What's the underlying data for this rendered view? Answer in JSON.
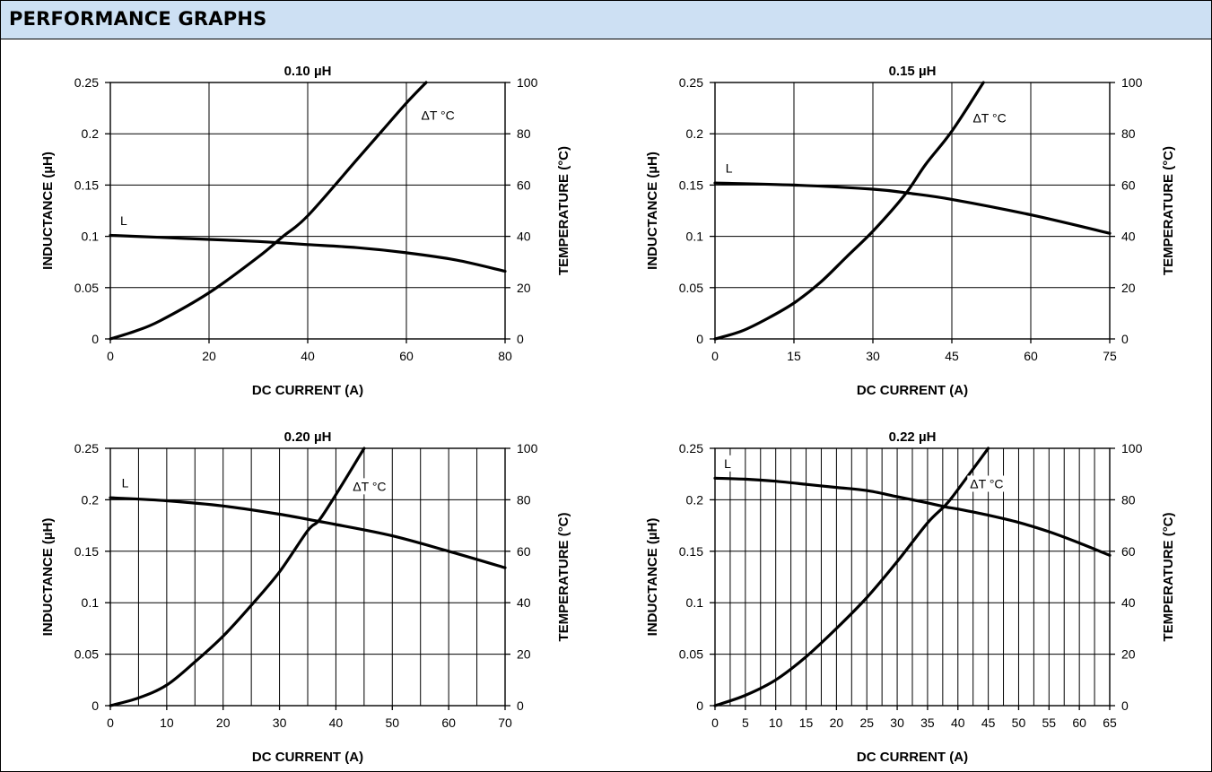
{
  "header": {
    "title": "PERFORMANCE GRAPHS"
  },
  "colors": {
    "header_bg": "#cde0f3",
    "line": "#000000",
    "grid": "#000000"
  },
  "chart_data": [
    {
      "type": "line",
      "title": "0.10 µH",
      "xlabel": "DC CURRENT (A)",
      "ylabel": "INDUCTANCE (µH)",
      "y2label": "TEMPERATURE (°C)",
      "xlim": [
        0,
        80
      ],
      "xticks": [
        0,
        20,
        40,
        60,
        80
      ],
      "xtick_labels": [
        "0",
        "20",
        "40",
        "60",
        "80"
      ],
      "xgrid": [
        0,
        20,
        40,
        60,
        80
      ],
      "ylim": [
        0,
        0.25
      ],
      "yticks": [
        0,
        0.05,
        0.1,
        0.15,
        0.2,
        0.25
      ],
      "ytick_labels": [
        "0",
        "0.05",
        "0.1",
        "0.15",
        "0.2",
        "0.25"
      ],
      "y2lim": [
        0,
        100
      ],
      "y2ticks": [
        0,
        20,
        40,
        60,
        80,
        100
      ],
      "y2tick_labels": [
        "0",
        "20",
        "40",
        "60",
        "80",
        "100"
      ],
      "grid": true,
      "series": [
        {
          "name": "L",
          "axis": "left",
          "x": [
            0,
            10,
            20,
            30,
            40,
            50,
            60,
            70,
            80
          ],
          "y": [
            0.101,
            0.099,
            0.097,
            0.095,
            0.092,
            0.089,
            0.084,
            0.077,
            0.066
          ],
          "label_at": [
            2,
            0.111
          ]
        },
        {
          "name": "ΔT °C",
          "axis": "right",
          "x": [
            0,
            5,
            10,
            20,
            30,
            35,
            40,
            50,
            55,
            60,
            64
          ],
          "y": [
            0,
            3,
            7,
            18,
            32,
            40,
            48,
            70,
            81,
            92,
            100
          ],
          "label_at": [
            63,
            85.5
          ]
        }
      ]
    },
    {
      "type": "line",
      "title": "0.15 µH",
      "xlabel": "DC CURRENT (A)",
      "ylabel": "INDUCTANCE (µH)",
      "y2label": "TEMPERATURE (°C)",
      "xlim": [
        0,
        75
      ],
      "xticks": [
        0,
        15,
        30,
        45,
        60,
        75
      ],
      "xtick_labels": [
        "0",
        "15",
        "30",
        "45",
        "60",
        "75"
      ],
      "xgrid": [
        0,
        15,
        30,
        45,
        60,
        75
      ],
      "ylim": [
        0,
        0.25
      ],
      "yticks": [
        0,
        0.05,
        0.1,
        0.15,
        0.2,
        0.25
      ],
      "ytick_labels": [
        "0",
        "0.05",
        "0.1",
        "0.15",
        "0.2",
        "0.25"
      ],
      "y2lim": [
        0,
        100
      ],
      "y2ticks": [
        0,
        20,
        40,
        60,
        80,
        100
      ],
      "y2tick_labels": [
        "0",
        "20",
        "40",
        "60",
        "80",
        "100"
      ],
      "grid": true,
      "series": [
        {
          "name": "L",
          "axis": "left",
          "x": [
            0,
            15,
            30,
            37,
            45,
            60,
            75
          ],
          "y": [
            0.152,
            0.15,
            0.146,
            0.142,
            0.136,
            0.121,
            0.103
          ],
          "label_at": [
            2,
            0.162
          ]
        },
        {
          "name": "ΔT °C",
          "axis": "right",
          "x": [
            0,
            5,
            10,
            15,
            20,
            25,
            30,
            36,
            40,
            45,
            51
          ],
          "y": [
            0,
            3,
            8,
            14,
            22,
            32,
            42,
            56,
            68,
            81,
            100
          ],
          "label_at": [
            49,
            84.5
          ]
        }
      ]
    },
    {
      "type": "line",
      "title": "0.20 µH",
      "xlabel": "DC CURRENT (A)",
      "ylabel": "INDUCTANCE (µH)",
      "y2label": "TEMPERATURE (°C)",
      "xlim": [
        0,
        70
      ],
      "xticks": [
        0,
        10,
        20,
        30,
        40,
        50,
        60,
        70
      ],
      "xtick_labels": [
        "0",
        "10",
        "20",
        "30",
        "40",
        "50",
        "60",
        "70"
      ],
      "xgrid": [
        0,
        5,
        10,
        15,
        20,
        25,
        30,
        35,
        40,
        45,
        50,
        55,
        60,
        65,
        70
      ],
      "ylim": [
        0,
        0.25
      ],
      "yticks": [
        0,
        0.05,
        0.1,
        0.15,
        0.2,
        0.25
      ],
      "ytick_labels": [
        "0",
        "0.05",
        "0.1",
        "0.15",
        "0.2",
        "0.25"
      ],
      "y2lim": [
        0,
        100
      ],
      "y2ticks": [
        0,
        20,
        40,
        60,
        80,
        100
      ],
      "y2tick_labels": [
        "0",
        "20",
        "40",
        "60",
        "80",
        "100"
      ],
      "grid": true,
      "series": [
        {
          "name": "L",
          "axis": "left",
          "x": [
            0,
            10,
            20,
            30,
            37,
            40,
            50,
            60,
            70
          ],
          "y": [
            0.202,
            0.199,
            0.194,
            0.186,
            0.179,
            0.176,
            0.165,
            0.15,
            0.134
          ],
          "label_at": [
            2,
            0.212
          ]
        },
        {
          "name": "ΔT °C",
          "axis": "right",
          "x": [
            0,
            5,
            10,
            15,
            20,
            25,
            30,
            35,
            37,
            40,
            45
          ],
          "y": [
            0,
            3,
            8,
            17,
            27,
            39,
            52,
            68,
            72,
            82,
            100
          ],
          "label_at": [
            43,
            83.5
          ]
        }
      ]
    },
    {
      "type": "line",
      "title": "0.22 µH",
      "xlabel": "DC CURRENT (A)",
      "ylabel": "INDUCTANCE (µH)",
      "y2label": "TEMPERATURE (°C)",
      "xlim": [
        0,
        65
      ],
      "xticks": [
        0,
        5,
        10,
        15,
        20,
        25,
        30,
        35,
        40,
        45,
        50,
        55,
        60,
        65
      ],
      "xtick_labels": [
        "0",
        "5",
        "10",
        "15",
        "20",
        "25",
        "30",
        "35",
        "40",
        "45",
        "50",
        "55",
        "60",
        "65"
      ],
      "xgrid": [
        0,
        2.5,
        5,
        7.5,
        10,
        12.5,
        15,
        17.5,
        20,
        22.5,
        25,
        27.5,
        30,
        32.5,
        35,
        37.5,
        40,
        42.5,
        45,
        47.5,
        50,
        52.5,
        55,
        57.5,
        60,
        62.5,
        65
      ],
      "ylim": [
        0,
        0.25
      ],
      "yticks": [
        0,
        0.05,
        0.1,
        0.15,
        0.2,
        0.25
      ],
      "ytick_labels": [
        "0",
        "0.05",
        "0.1",
        "0.15",
        "0.2",
        "0.25"
      ],
      "y2lim": [
        0,
        100
      ],
      "y2ticks": [
        0,
        20,
        40,
        60,
        80,
        100
      ],
      "y2tick_labels": [
        "0",
        "20",
        "40",
        "60",
        "80",
        "100"
      ],
      "grid": true,
      "series": [
        {
          "name": "L",
          "axis": "left",
          "x": [
            0,
            5,
            10,
            15,
            20,
            25,
            30,
            35,
            38,
            40,
            45,
            50,
            55,
            60,
            65
          ],
          "y": [
            0.221,
            0.22,
            0.218,
            0.215,
            0.212,
            0.209,
            0.203,
            0.197,
            0.193,
            0.191,
            0.185,
            0.178,
            0.169,
            0.158,
            0.146
          ],
          "label_at": [
            1.5,
            0.231
          ]
        },
        {
          "name": "ΔT °C",
          "axis": "right",
          "x": [
            0,
            5,
            10,
            15,
            20,
            25,
            30,
            35,
            38,
            40,
            45
          ],
          "y": [
            0,
            4,
            10,
            19,
            30,
            42,
            56,
            71,
            78,
            84,
            100
          ],
          "label_at": [
            42,
            84.5
          ]
        }
      ]
    }
  ]
}
